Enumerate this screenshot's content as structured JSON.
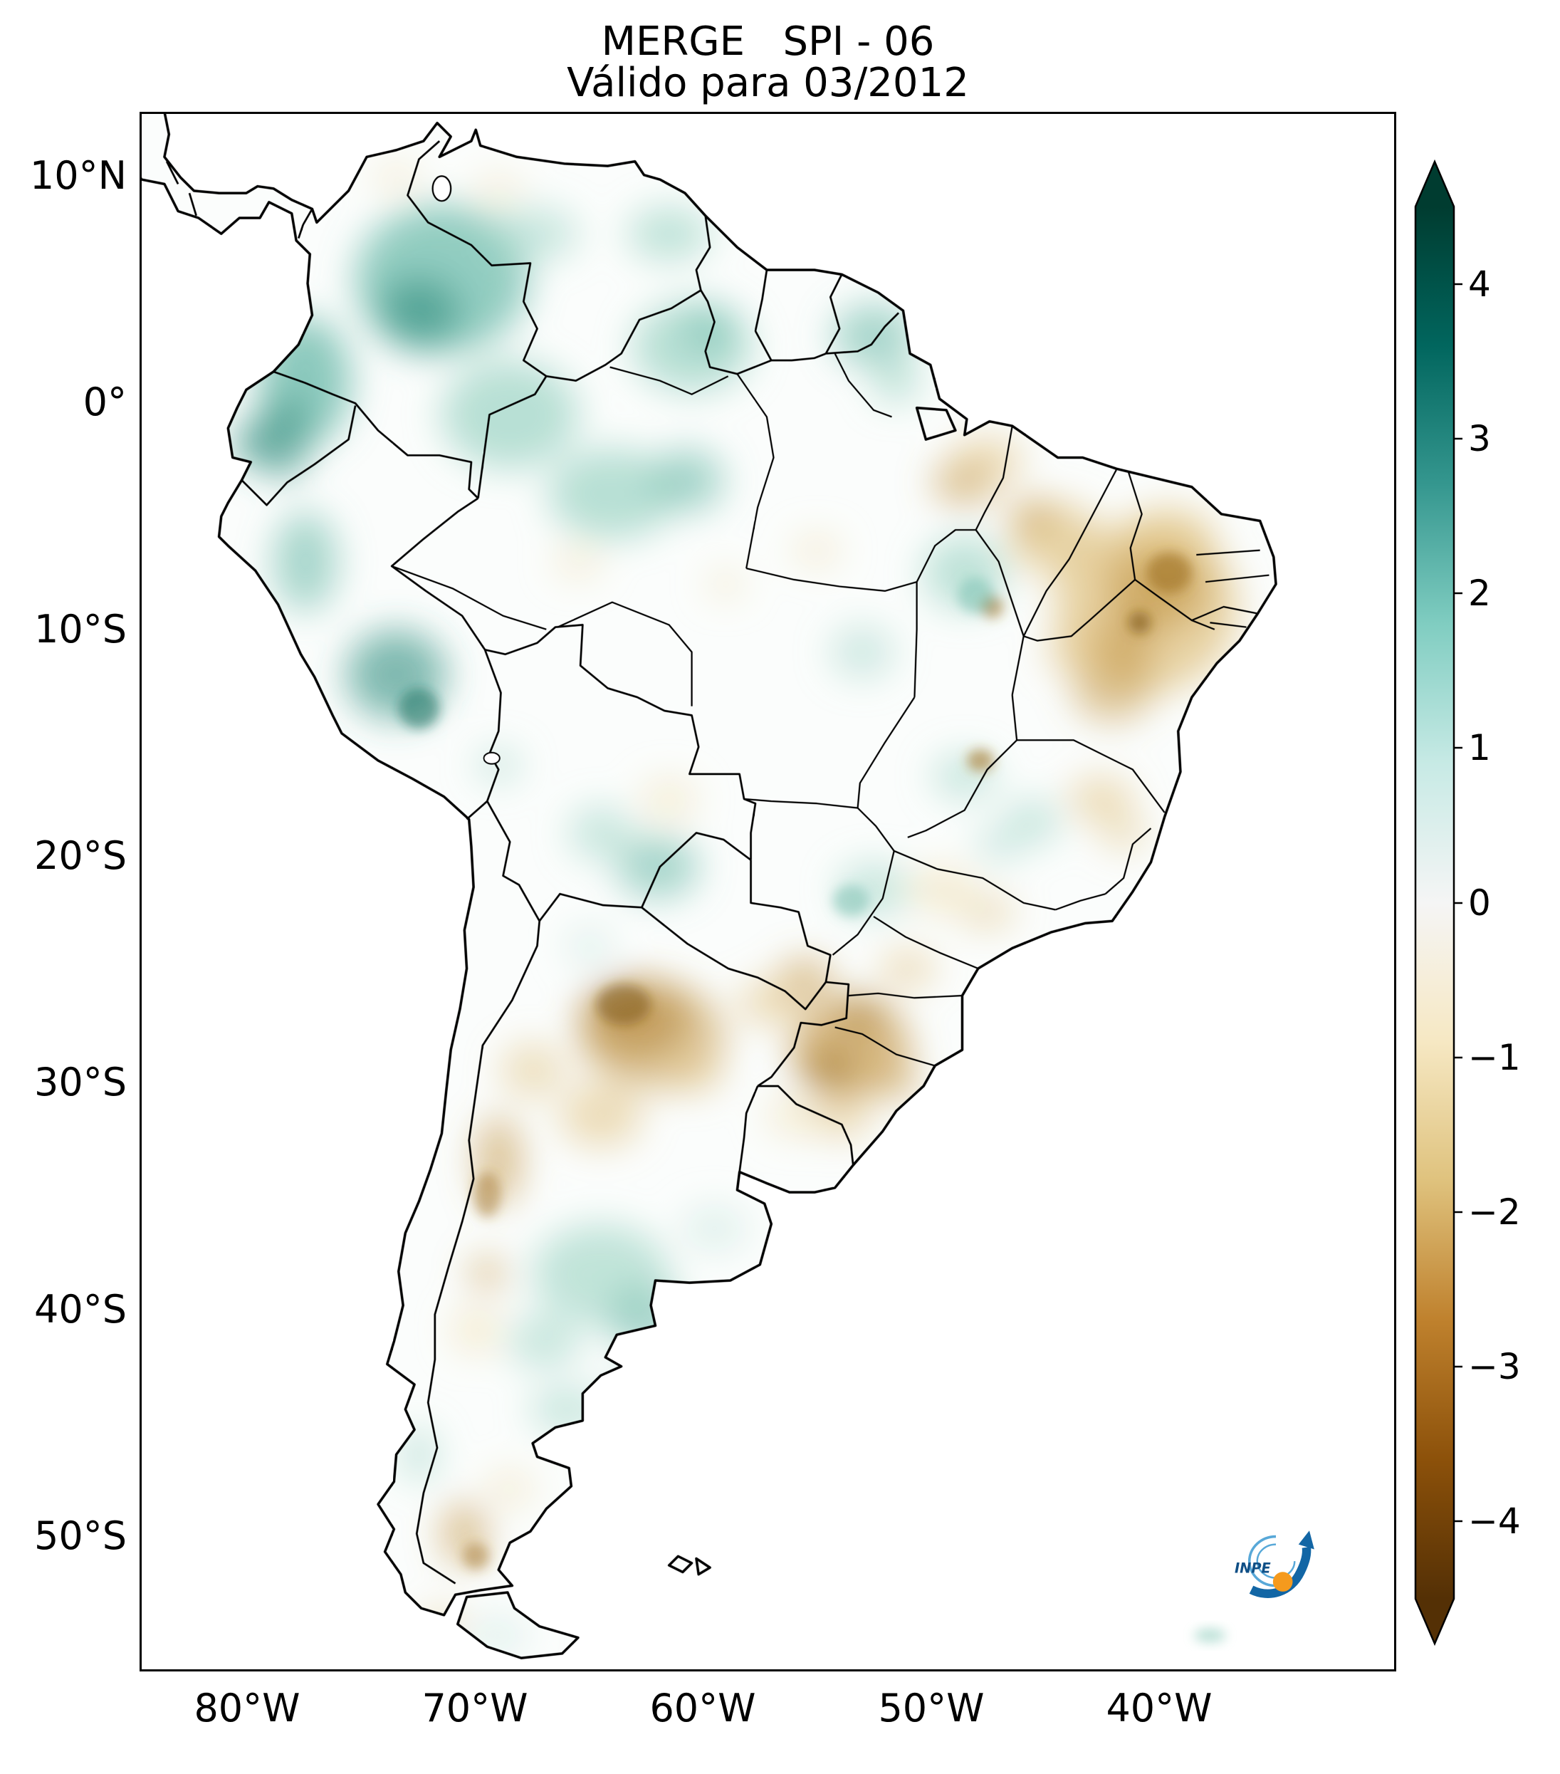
{
  "title": {
    "line1": "MERGE   SPI - 06",
    "line2": "Válido para 03/2012"
  },
  "axes": {
    "y_ticks": [
      "10°N",
      "0°",
      "10°S",
      "20°S",
      "30°S",
      "40°S",
      "50°S"
    ],
    "x_ticks": [
      "80°W",
      "70°W",
      "60°W",
      "50°W",
      "40°W"
    ]
  },
  "colorbar": {
    "tick_labels": [
      "4",
      "3",
      "2",
      "1",
      "0",
      "−1",
      "−2",
      "−3",
      "−4"
    ],
    "tick_values": [
      4,
      3,
      2,
      1,
      0,
      -1,
      -2,
      -3,
      -4
    ],
    "min": -4.5,
    "max": 4.5,
    "extend": "both",
    "gradient": [
      {
        "value": 4.5,
        "color": "#003c30"
      },
      {
        "value": 3.6,
        "color": "#01665e"
      },
      {
        "value": 2.7,
        "color": "#35978f"
      },
      {
        "value": 1.8,
        "color": "#80cdc1"
      },
      {
        "value": 0.9,
        "color": "#c7eae5"
      },
      {
        "value": 0.0,
        "color": "#f5f5f5"
      },
      {
        "value": -0.9,
        "color": "#f6e8c3"
      },
      {
        "value": -1.8,
        "color": "#dfc27d"
      },
      {
        "value": -2.7,
        "color": "#bf812d"
      },
      {
        "value": -3.6,
        "color": "#8c510a"
      },
      {
        "value": -4.5,
        "color": "#543005"
      }
    ]
  },
  "logo": {
    "text": "INPE",
    "colors": {
      "arrow_blue": "#1266a5",
      "swirl_blue": "#58a8d8",
      "dot_orange": "#f59a1d"
    }
  },
  "chart_data": {
    "type": "heatmap",
    "title": "MERGE   SPI - 06",
    "subtitle": "Válido para 03/2012",
    "product": "MERGE",
    "index": "SPI-06 (6-month Standardized Precipitation Index)",
    "valid_for": "03/2012",
    "region": "South America",
    "x_axis": {
      "ticks": [
        "80°W",
        "70°W",
        "60°W",
        "50°W",
        "40°W"
      ],
      "lon_range": [
        -85,
        -29.5
      ]
    },
    "y_axis": {
      "ticks": [
        "10°N",
        "0°",
        "10°S",
        "20°S",
        "30°S",
        "40°S",
        "50°S"
      ],
      "lat_range": [
        -56,
        13
      ]
    },
    "colorbar": {
      "tick_values": [
        4,
        3,
        2,
        1,
        0,
        -1,
        -2,
        -3,
        -4
      ],
      "range": [
        -4.5,
        4.5
      ],
      "extend": "both",
      "colormap": "BrBG (brown = dry / negative SPI, teal-green = wet / positive SPI)"
    },
    "grid": false,
    "overlays": [
      "country borders",
      "Brazilian state borders",
      "INPE logo bottom-right"
    ],
    "regions_approx_spi": [
      {
        "region": "Eastern Colombia / SW Venezuela (NW Amazon)",
        "approx_spi": 1.5,
        "condition": "wet"
      },
      {
        "region": "Ecuador and northern Peru Andes",
        "approx_spi": 1.5,
        "condition": "wet"
      },
      {
        "region": "Southeastern Peru Andes",
        "approx_spi": 2.0,
        "condition": "wet"
      },
      {
        "region": "Central Amazon (Brazil)",
        "approx_spi": 1.0,
        "condition": "wet"
      },
      {
        "region": "Roraima / Guyana border",
        "approx_spi": 1.0,
        "condition": "wet"
      },
      {
        "region": "Amapá / French Guiana",
        "approx_spi": 1.0,
        "condition": "wet"
      },
      {
        "region": "Northeast Brazil (Pernambuco / Ceará / N Bahia)",
        "approx_spi": -2.0,
        "condition": "dry"
      },
      {
        "region": "Maranhão / Piauí",
        "approx_spi": -1.5,
        "condition": "dry"
      },
      {
        "region": "Eastern Pará near Belém",
        "approx_spi": -1.5,
        "condition": "dry"
      },
      {
        "region": "Minas Gerais / Espírito Santo",
        "approx_spi": -1.0,
        "condition": "dry"
      },
      {
        "region": "Goiás / Tocantins patches",
        "approx_spi": 0.8,
        "condition": "wet"
      },
      {
        "region": "Rio Grande do Sul / W Santa Catarina",
        "approx_spi": -2.0,
        "condition": "dry"
      },
      {
        "region": "Eastern Paraguay / Misiones",
        "approx_spi": -1.5,
        "condition": "dry"
      },
      {
        "region": "Argentine Chaco / Santiago del Estero",
        "approx_spi": -2.5,
        "condition": "dry"
      },
      {
        "region": "Cuyo Andes, W Argentina ~33°S",
        "approx_spi": -2.0,
        "condition": "dry"
      },
      {
        "region": "NW Paraguay / SE Bolivia Chaco",
        "approx_spi": 1.0,
        "condition": "wet"
      },
      {
        "region": "Central Argentina (La Pampa / S Buenos Aires)",
        "approx_spi": 1.0,
        "condition": "wet"
      },
      {
        "region": "Southern Patagonia ~50°S",
        "approx_spi": -1.5,
        "condition": "dry"
      }
    ]
  }
}
